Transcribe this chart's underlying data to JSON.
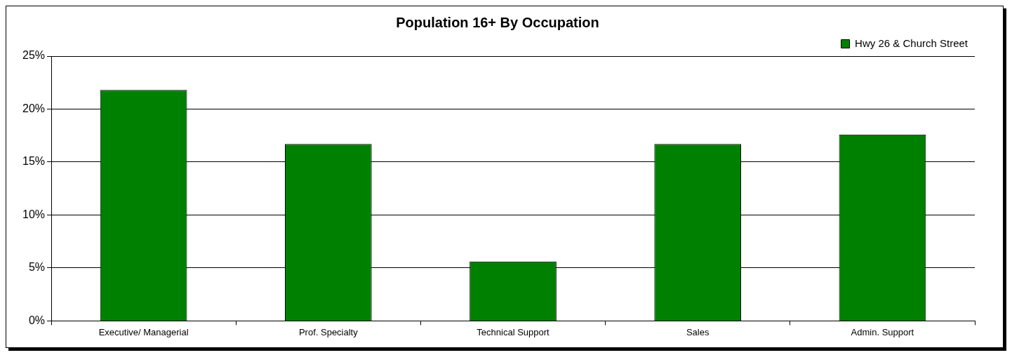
{
  "chart_data": {
    "type": "bar",
    "title": "Population 16+ By Occupation",
    "categories": [
      "Executive/ Managerial",
      "Prof. Specialty",
      "Technical Support",
      "Sales",
      "Admin. Support"
    ],
    "series": [
      {
        "name": "Hwy 26 & Church Street",
        "color": "#008000",
        "values": [
          21.8,
          16.7,
          5.6,
          16.7,
          17.6
        ]
      }
    ],
    "ylim": [
      0,
      25
    ],
    "yticks": [
      {
        "value": 0,
        "label": "0%"
      },
      {
        "value": 5,
        "label": "5%"
      },
      {
        "value": 10,
        "label": "10%"
      },
      {
        "value": 15,
        "label": "15%"
      },
      {
        "value": 20,
        "label": "20%"
      },
      {
        "value": 25,
        "label": "25%"
      }
    ],
    "grid": "y",
    "legend": "top right"
  }
}
